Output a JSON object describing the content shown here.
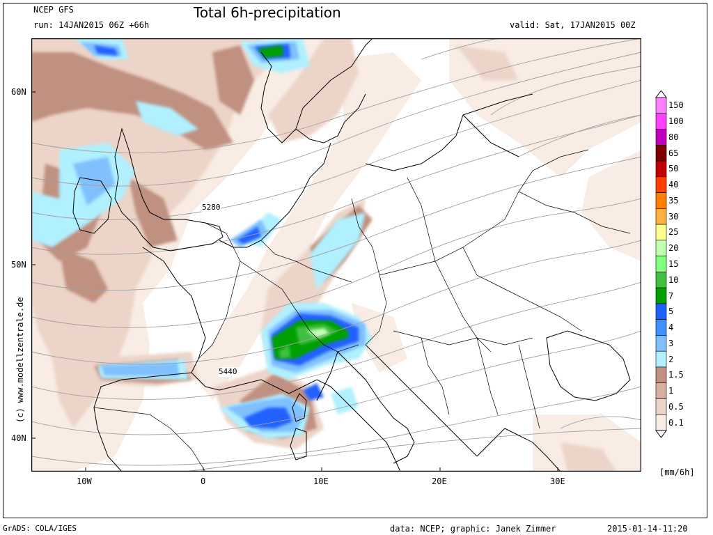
{
  "header": {
    "model": "NCEP GFS",
    "run": "run: 14JAN2015 06Z +66h",
    "title": "Total 6h-precipitation",
    "valid": "valid: Sat, 17JAN2015 00Z"
  },
  "axes": {
    "lat_labels": [
      "60N",
      "50N",
      "40N"
    ],
    "lon_labels": [
      "10W",
      "0",
      "10E",
      "20E",
      "30E"
    ]
  },
  "contour_labels": [
    "5280",
    "5440"
  ],
  "watermark": "(c) www.modellzentrale.de",
  "colorbar": {
    "unit": "[mm/6h]",
    "levels": [
      "150",
      "100",
      "80",
      "65",
      "50",
      "40",
      "35",
      "30",
      "25",
      "20",
      "15",
      "10",
      "7",
      "5",
      "4",
      "3",
      "2",
      "1.5",
      "1",
      "0.5",
      "0.1"
    ],
    "colors": [
      "#ff80ff",
      "#ff40ff",
      "#c000c0",
      "#800000",
      "#c00000",
      "#ff4000",
      "#ff8000",
      "#ffb040",
      "#ffff90",
      "#c0ffb0",
      "#80ff80",
      "#40c040",
      "#00a000",
      "#2060ff",
      "#4090ff",
      "#80c0ff",
      "#b0f0ff",
      "#c09080",
      "#d8b0a0",
      "#ecd4c8",
      "#f8ece4"
    ]
  },
  "footer": {
    "left": "GrADS: COLA/IGES",
    "center": "data: NCEP; graphic: Janek Zimmer",
    "right": "2015-01-14-11:20"
  }
}
